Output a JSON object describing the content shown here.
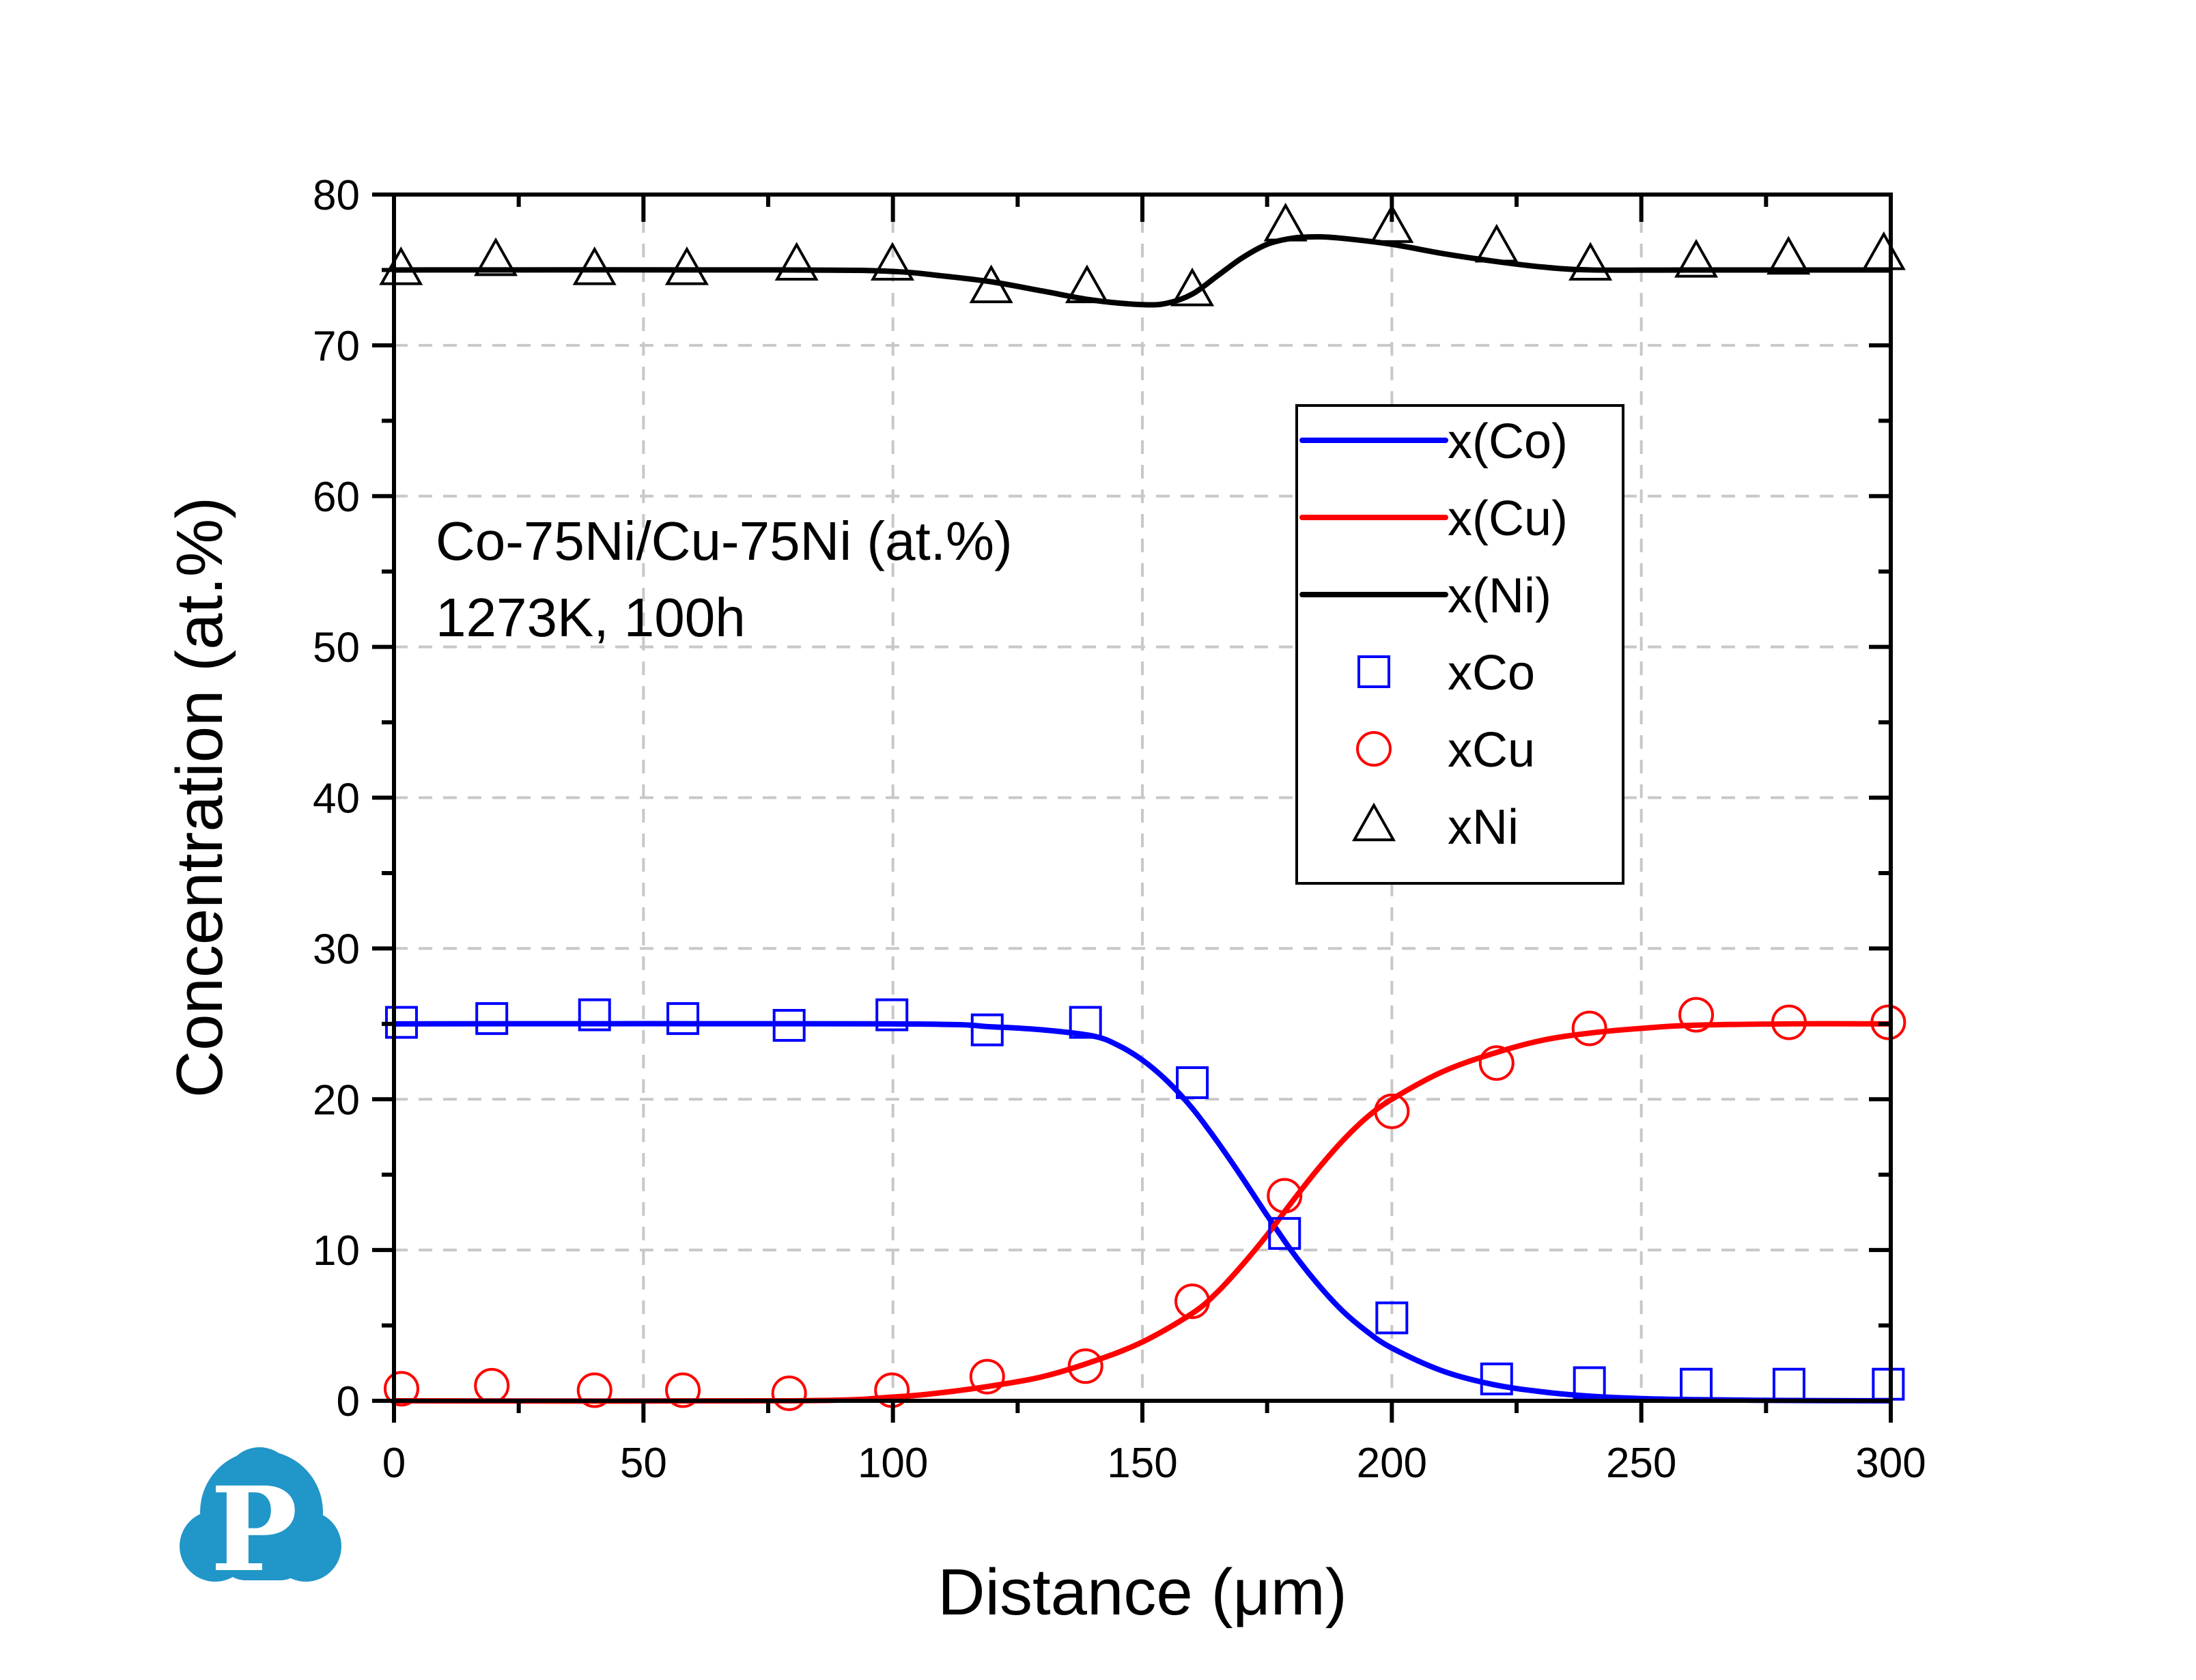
{
  "chart_data": {
    "type": "line",
    "title": "",
    "xlabel": "Distance (μm)",
    "ylabel": "Concentration (at.%)",
    "xlim": [
      0,
      300
    ],
    "ylim": [
      0,
      80
    ],
    "xticks": [
      0,
      50,
      100,
      150,
      200,
      250,
      300
    ],
    "yticks": [
      0,
      10,
      20,
      30,
      40,
      50,
      60,
      70,
      80
    ],
    "grid": true,
    "legend_position": "upper-right",
    "annotations": [
      "Co-75Ni/Cu-75Ni (at.%)",
      "1273K, 100h"
    ],
    "series": [
      {
        "name": "x(Co)",
        "kind": "line",
        "color": "#0000ff",
        "x": [
          0,
          100,
          120,
          130,
          140,
          145,
          150,
          155,
          160,
          165,
          170,
          175,
          180,
          185,
          190,
          195,
          200,
          210,
          220,
          230,
          240,
          250,
          260,
          280,
          300
        ],
        "y": [
          25,
          25,
          24.8,
          24.6,
          24.2,
          23.6,
          22.6,
          21.2,
          19.4,
          17.2,
          14.8,
          12.3,
          9.9,
          7.8,
          6.0,
          4.6,
          3.5,
          2.0,
          1.1,
          0.6,
          0.3,
          0.15,
          0.08,
          0.02,
          0
        ]
      },
      {
        "name": "x(Cu)",
        "kind": "line",
        "color": "#ff0000",
        "x": [
          0,
          80,
          100,
          110,
          120,
          130,
          140,
          150,
          160,
          165,
          170,
          175,
          180,
          185,
          190,
          195,
          200,
          210,
          220,
          230,
          240,
          250,
          260,
          280,
          300
        ],
        "y": [
          0,
          0,
          0.25,
          0.55,
          1.0,
          1.6,
          2.6,
          3.9,
          5.8,
          7.2,
          9.0,
          11.0,
          13.2,
          15.3,
          17.2,
          18.8,
          20.0,
          21.8,
          23.0,
          23.9,
          24.4,
          24.7,
          24.9,
          25,
          25
        ]
      },
      {
        "name": "x(Ni)",
        "kind": "line",
        "color": "#000000",
        "x": [
          0,
          80,
          100,
          110,
          120,
          130,
          140,
          150,
          155,
          160,
          165,
          170,
          175,
          180,
          185,
          190,
          200,
          210,
          220,
          230,
          240,
          260,
          300
        ],
        "y": [
          75,
          75,
          74.9,
          74.6,
          74.2,
          73.6,
          73.0,
          72.7,
          72.8,
          73.4,
          74.6,
          75.8,
          76.7,
          77.1,
          77.2,
          77.1,
          76.7,
          76.1,
          75.6,
          75.2,
          75.0,
          75,
          75
        ]
      },
      {
        "name": "xCo",
        "kind": "scatter",
        "marker": "square",
        "color": "#0000ff",
        "x": [
          1.5,
          19.6,
          40.2,
          57.9,
          79.2,
          99.8,
          118.9,
          138.6,
          160,
          178.5,
          200,
          221,
          239.6,
          261,
          279.6,
          299.5
        ],
        "y": [
          25.1,
          25.35,
          25.6,
          25.35,
          24.9,
          25.6,
          24.6,
          25.1,
          21.1,
          11.1,
          5.5,
          1.45,
          1.2,
          1.1,
          1.1,
          1.1
        ]
      },
      {
        "name": "xCu",
        "kind": "scatter",
        "marker": "circle",
        "color": "#ff0000",
        "x": [
          1.5,
          19.6,
          40.2,
          57.9,
          79.2,
          99.8,
          118.9,
          138.6,
          160,
          178.5,
          200,
          221,
          239.6,
          261,
          279.6,
          299.5
        ],
        "y": [
          0.8,
          1.0,
          0.7,
          0.7,
          0.5,
          0.7,
          1.6,
          2.3,
          6.6,
          13.6,
          19.2,
          22.4,
          24.7,
          25.6,
          25.1,
          25.1
        ]
      },
      {
        "name": "xNi",
        "kind": "scatter",
        "marker": "triangle",
        "color": "#000000",
        "x": [
          1.4,
          20.4,
          40.2,
          58.7,
          80.7,
          99.9,
          119.7,
          138.9,
          160,
          178.7,
          200,
          221,
          239.8,
          261,
          279.5,
          298.6
        ],
        "y": [
          75.0,
          75.6,
          75.0,
          75.0,
          75.3,
          75.3,
          73.8,
          73.8,
          73.6,
          77.9,
          77.8,
          76.5,
          75.3,
          75.5,
          75.7,
          76.0
        ]
      }
    ]
  },
  "logo": {
    "letter": "P",
    "color": "#2196c9"
  }
}
